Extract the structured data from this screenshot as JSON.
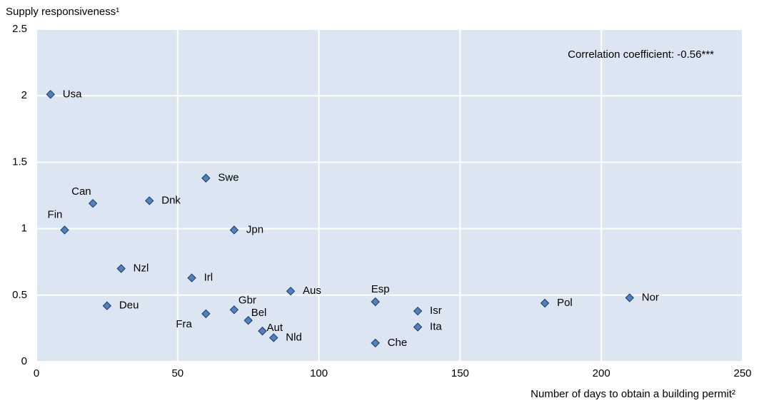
{
  "chart_data": {
    "type": "scatter",
    "y_label": "Supply responsiveness¹",
    "x_label": "Number of days to obtain a building permit²",
    "annotation": "Correlation coefficient: -0.56***",
    "xlim": [
      0,
      250
    ],
    "xticks": [
      0,
      50,
      100,
      150,
      200,
      250
    ],
    "ylim": [
      0,
      2.5
    ],
    "yticks": [
      0,
      0.5,
      1,
      1.5,
      2,
      2.5
    ],
    "grid": true,
    "color": "#4f81bd",
    "background": "#dce6f2",
    "labels": [
      "Usa",
      "Can",
      "Fin",
      "Swe",
      "Dnk",
      "Jpn",
      "Nzl",
      "Irl",
      "Deu",
      "Aus",
      "Gbr",
      "Fra",
      "Bel",
      "Aut",
      "Nld",
      "Esp",
      "Che",
      "Isr",
      "Ita",
      "Pol",
      "Nor"
    ],
    "x": [
      5,
      20,
      10,
      60,
      40,
      70,
      30,
      55,
      25,
      90,
      70,
      60,
      75,
      80,
      84,
      120,
      120,
      135,
      135,
      180,
      210
    ],
    "values": [
      2.01,
      1.19,
      0.99,
      1.38,
      1.21,
      0.99,
      0.7,
      0.63,
      0.42,
      0.53,
      0.39,
      0.36,
      0.31,
      0.23,
      0.18,
      0.45,
      0.14,
      0.38,
      0.26,
      0.44,
      0.48
    ]
  }
}
